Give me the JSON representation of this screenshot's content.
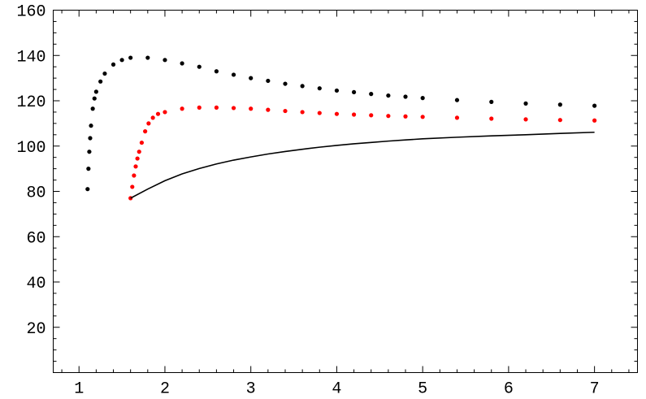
{
  "chart_data": {
    "type": "scatter",
    "title": "",
    "xlabel": "",
    "ylabel": "",
    "xlim": [
      0.7,
      7.5
    ],
    "ylim": [
      0,
      160
    ],
    "x_ticks": [
      1,
      2,
      3,
      4,
      5,
      6,
      7
    ],
    "y_ticks": [
      20,
      40,
      60,
      80,
      100,
      120,
      140,
      160
    ],
    "x_minor_step": 0.2,
    "y_minor_step": 5,
    "grid": false,
    "legend": "none",
    "series": [
      {
        "type": "scatter",
        "color": "#000000",
        "points": [
          [
            1.1,
            81
          ],
          [
            1.11,
            90
          ],
          [
            1.12,
            97.5
          ],
          [
            1.13,
            103.5
          ],
          [
            1.14,
            109
          ],
          [
            1.16,
            116.5
          ],
          [
            1.18,
            121
          ],
          [
            1.2,
            124
          ],
          [
            1.25,
            128.5
          ],
          [
            1.3,
            132
          ],
          [
            1.4,
            136
          ],
          [
            1.5,
            138
          ],
          [
            1.6,
            139
          ],
          [
            1.8,
            139
          ],
          [
            2.0,
            138
          ],
          [
            2.2,
            136.5
          ],
          [
            2.4,
            135
          ],
          [
            2.6,
            133
          ],
          [
            2.8,
            131.5
          ],
          [
            3.0,
            130
          ],
          [
            3.2,
            128.8
          ],
          [
            3.4,
            127.5
          ],
          [
            3.6,
            126.5
          ],
          [
            3.8,
            125.5
          ],
          [
            4.0,
            124.5
          ],
          [
            4.2,
            123.8
          ],
          [
            4.4,
            123
          ],
          [
            4.6,
            122.3
          ],
          [
            4.8,
            121.8
          ],
          [
            5.0,
            121.2
          ],
          [
            5.4,
            120.3
          ],
          [
            5.8,
            119.5
          ],
          [
            6.2,
            118.8
          ],
          [
            6.6,
            118.3
          ],
          [
            7.0,
            117.8
          ]
        ]
      },
      {
        "type": "scatter",
        "color": "#ff0000",
        "points": [
          [
            1.6,
            77
          ],
          [
            1.62,
            82
          ],
          [
            1.64,
            87
          ],
          [
            1.66,
            91
          ],
          [
            1.68,
            94.5
          ],
          [
            1.7,
            97.5
          ],
          [
            1.73,
            101.5
          ],
          [
            1.77,
            106.5
          ],
          [
            1.81,
            110
          ],
          [
            1.86,
            112.5
          ],
          [
            1.92,
            114.2
          ],
          [
            2.0,
            115
          ],
          [
            2.2,
            116.5
          ],
          [
            2.4,
            117
          ],
          [
            2.6,
            117
          ],
          [
            2.8,
            116.8
          ],
          [
            3.0,
            116.5
          ],
          [
            3.2,
            116
          ],
          [
            3.4,
            115.5
          ],
          [
            3.6,
            115
          ],
          [
            3.8,
            114.6
          ],
          [
            4.0,
            114.2
          ],
          [
            4.2,
            113.9
          ],
          [
            4.4,
            113.6
          ],
          [
            4.6,
            113.3
          ],
          [
            4.8,
            113.1
          ],
          [
            5.0,
            112.9
          ],
          [
            5.4,
            112.5
          ],
          [
            5.8,
            112.1
          ],
          [
            6.2,
            111.8
          ],
          [
            6.6,
            111.5
          ],
          [
            7.0,
            111.3
          ]
        ]
      },
      {
        "type": "line",
        "color": "#000000",
        "points": [
          [
            1.6,
            77
          ],
          [
            1.8,
            81
          ],
          [
            2.0,
            84.7
          ],
          [
            2.2,
            87.7
          ],
          [
            2.4,
            90.1
          ],
          [
            2.6,
            92.1
          ],
          [
            2.8,
            93.8
          ],
          [
            3.0,
            95.2
          ],
          [
            3.2,
            96.5
          ],
          [
            3.4,
            97.6
          ],
          [
            3.6,
            98.6
          ],
          [
            3.8,
            99.5
          ],
          [
            4.0,
            100.3
          ],
          [
            4.2,
            101.0
          ],
          [
            4.4,
            101.6
          ],
          [
            4.6,
            102.2
          ],
          [
            4.8,
            102.7
          ],
          [
            5.0,
            103.2
          ],
          [
            5.4,
            103.9
          ],
          [
            5.8,
            104.5
          ],
          [
            6.2,
            105.0
          ],
          [
            6.6,
            105.6
          ],
          [
            7.0,
            106.1
          ]
        ]
      }
    ]
  }
}
